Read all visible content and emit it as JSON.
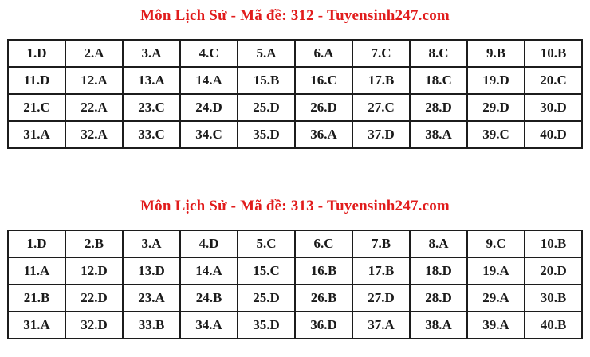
{
  "theme": {
    "bg": "#ffffff",
    "accent": "#e11c1c",
    "text": "#1a1a1a",
    "border": "#1c1c1c"
  },
  "sections": [
    {
      "title": "Môn Lịch Sử - Mã đề: 312 - Tuyensinh247.com",
      "subject": "Lịch Sử",
      "exam_code": "312",
      "source": "Tuyensinh247.com",
      "rows": [
        [
          "1.D",
          "2.A",
          "3.A",
          "4.C",
          "5.A",
          "6.A",
          "7.C",
          "8.C",
          "9.B",
          "10.B"
        ],
        [
          "11.D",
          "12.A",
          "13.A",
          "14.A",
          "15.B",
          "16.C",
          "17.B",
          "18.C",
          "19.D",
          "20.C"
        ],
        [
          "21.C",
          "22.A",
          "23.C",
          "24.D",
          "25.D",
          "26.D",
          "27.C",
          "28.D",
          "29.D",
          "30.D"
        ],
        [
          "31.A",
          "32.A",
          "33.C",
          "34.C",
          "35.D",
          "36.A",
          "37.D",
          "38.A",
          "39.C",
          "40.D"
        ]
      ]
    },
    {
      "title": "Môn Lịch Sử - Mã đề: 313 - Tuyensinh247.com",
      "subject": "Lịch Sử",
      "exam_code": "313",
      "source": "Tuyensinh247.com",
      "rows": [
        [
          "1.D",
          "2.B",
          "3.A",
          "4.D",
          "5.C",
          "6.C",
          "7.B",
          "8.A",
          "9.C",
          "10.B"
        ],
        [
          "11.A",
          "12.D",
          "13.D",
          "14.A",
          "15.C",
          "16.B",
          "17.B",
          "18.D",
          "19.A",
          "20.D"
        ],
        [
          "21.B",
          "22.D",
          "23.A",
          "24.B",
          "25.D",
          "26.B",
          "27.D",
          "28.D",
          "29.A",
          "30.B"
        ],
        [
          "31.A",
          "32.D",
          "33.B",
          "34.A",
          "35.D",
          "36.D",
          "37.A",
          "38.A",
          "39.A",
          "40.B"
        ]
      ]
    }
  ]
}
